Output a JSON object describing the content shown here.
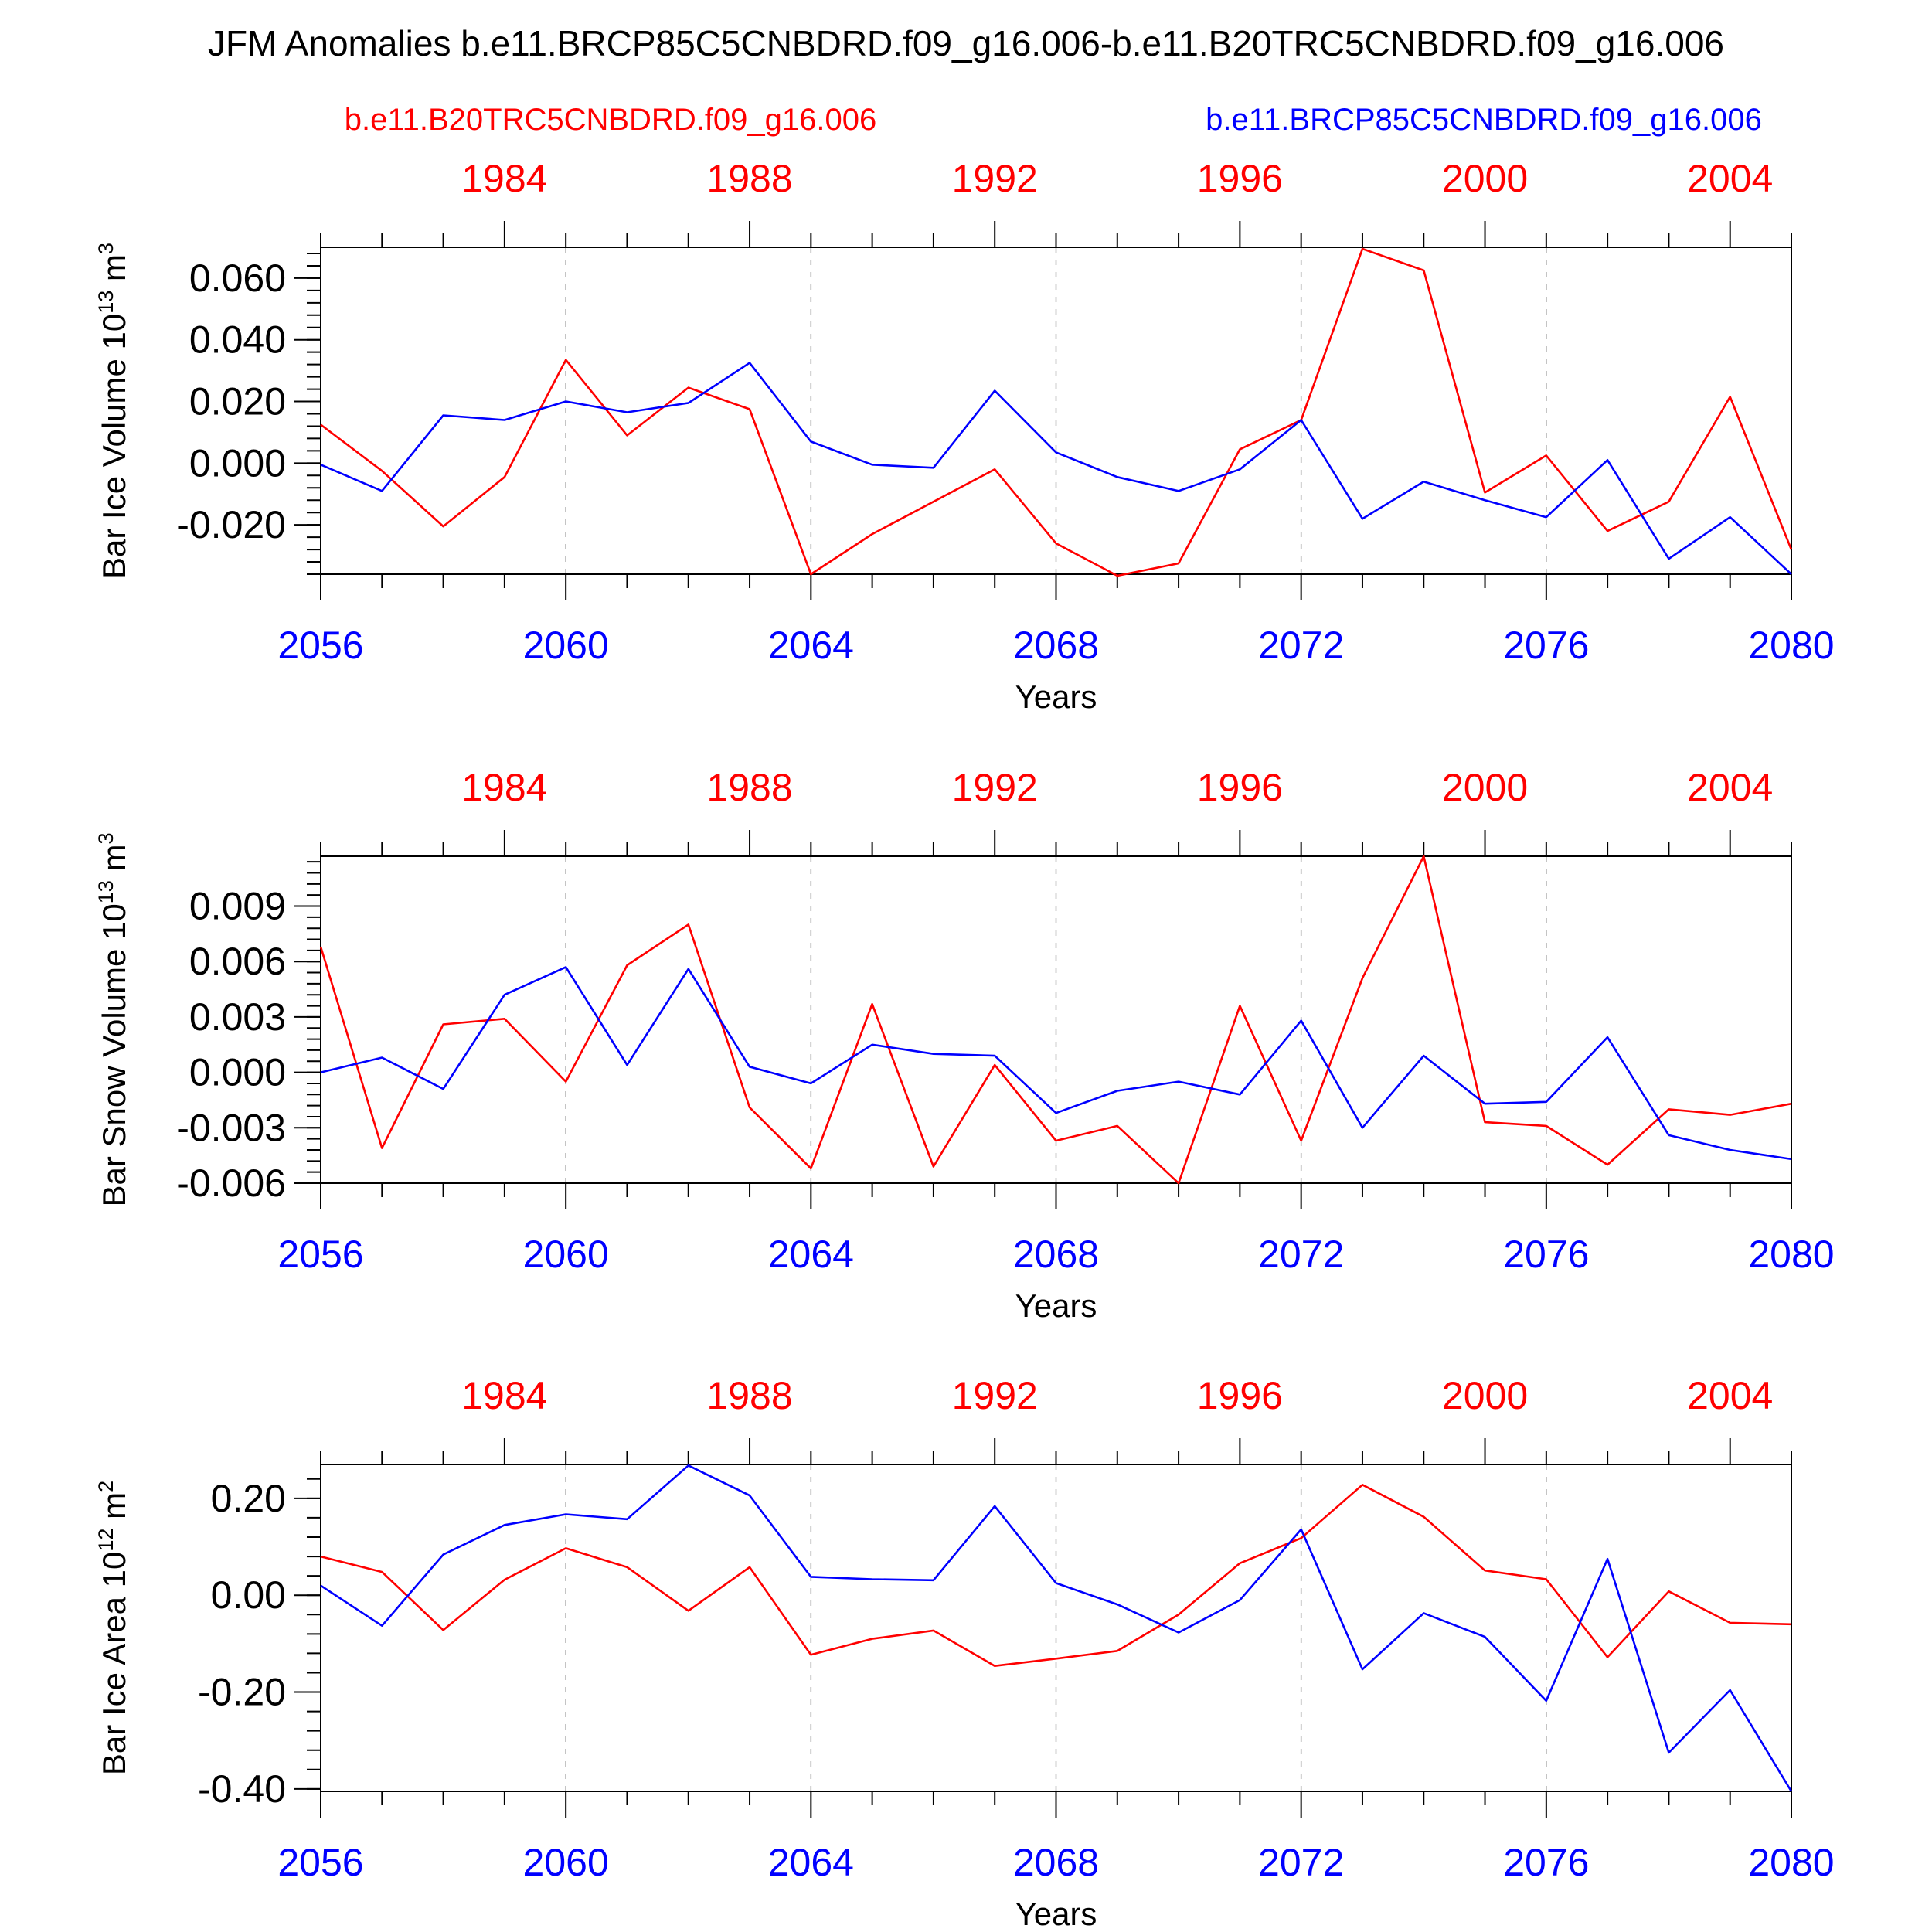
{
  "title": "JFM Anomalies b.e11.BRCP85C5CNBDRD.f09_g16.006-b.e11.B20TRC5CNBDRD.f09_g16.006",
  "legend": {
    "red_label": "b.e11.B20TRC5CNBDRD.f09_g16.006",
    "blue_label": "b.e11.BRCP85C5CNBDRD.f09_g16.006"
  },
  "colors": {
    "red": "#ff0000",
    "blue": "#0000ff",
    "axis": "#000000",
    "grid": "#999999"
  },
  "chart_data": [
    {
      "type": "line",
      "ylabel": "Bar Ice Volume 10",
      "ylabel_sup": "13",
      "ylabel_unit": " m",
      "ylabel_unit_sup": "3",
      "xlabel": "Years",
      "ylim": [
        -0.036,
        0.07
      ],
      "yticks": [
        -0.02,
        0.0,
        0.02,
        0.04,
        0.06
      ],
      "ytick_labels": [
        "-0.020",
        "0.000",
        "0.020",
        "0.040",
        "0.060"
      ],
      "yminor_step": 0.004,
      "x_bottom": [
        2056,
        2057,
        2058,
        2059,
        2060,
        2061,
        2062,
        2063,
        2064,
        2065,
        2066,
        2067,
        2068,
        2069,
        2070,
        2071,
        2072,
        2073,
        2074,
        2075,
        2076,
        2077,
        2078,
        2079,
        2080
      ],
      "x_top": [
        1981,
        1982,
        1983,
        1984,
        1985,
        1986,
        1987,
        1988,
        1989,
        1990,
        1991,
        1992,
        1993,
        1994,
        1995,
        1996,
        1997,
        1998,
        1999,
        2000,
        2001,
        2002,
        2003,
        2004,
        2005
      ],
      "bottom_tick_labels": [
        "2056",
        "2060",
        "2064",
        "2068",
        "2072",
        "2076",
        "2080"
      ],
      "top_tick_labels": [
        "1984",
        "1988",
        "1992",
        "1996",
        "2000",
        "2004"
      ],
      "series": [
        {
          "name": "b.e11.B20TRC5CNBDRD.f09_g16.006",
          "color": "red",
          "values": [
            0.0125,
            -0.0025,
            -0.0205,
            -0.0045,
            0.0335,
            0.009,
            0.0245,
            0.0175,
            -0.036,
            -0.023,
            -0.0125,
            -0.002,
            -0.026,
            -0.0365,
            -0.0325,
            0.0045,
            0.014,
            0.0695,
            0.0625,
            -0.0095,
            0.0025,
            -0.022,
            -0.0125,
            0.0215,
            -0.028
          ]
        },
        {
          "name": "b.e11.BRCP85C5CNBDRD.f09_g16.006",
          "color": "blue",
          "values": [
            -0.0005,
            -0.009,
            0.0155,
            0.014,
            0.02,
            0.0165,
            0.0195,
            0.0325,
            0.007,
            -0.0005,
            -0.0015,
            0.0235,
            0.0035,
            -0.0045,
            -0.009,
            -0.002,
            0.014,
            -0.018,
            -0.006,
            -0.012,
            -0.0175,
            0.001,
            -0.031,
            -0.0175,
            -0.036
          ]
        }
      ]
    },
    {
      "type": "line",
      "ylabel": "Bar Snow Volume 10",
      "ylabel_sup": "13",
      "ylabel_unit": " m",
      "ylabel_unit_sup": "3",
      "xlabel": "Years",
      "ylim": [
        -0.006,
        0.0117
      ],
      "yticks": [
        -0.006,
        -0.003,
        0.0,
        0.003,
        0.006,
        0.009
      ],
      "ytick_labels": [
        "-0.006",
        "-0.003",
        "0.000",
        "0.003",
        "0.006",
        "0.009"
      ],
      "yminor_step": 0.0006,
      "x_bottom": [
        2056,
        2057,
        2058,
        2059,
        2060,
        2061,
        2062,
        2063,
        2064,
        2065,
        2066,
        2067,
        2068,
        2069,
        2070,
        2071,
        2072,
        2073,
        2074,
        2075,
        2076,
        2077,
        2078,
        2079,
        2080
      ],
      "x_top": [
        1981,
        1982,
        1983,
        1984,
        1985,
        1986,
        1987,
        1988,
        1989,
        1990,
        1991,
        1992,
        1993,
        1994,
        1995,
        1996,
        1997,
        1998,
        1999,
        2000,
        2001,
        2002,
        2003,
        2004,
        2005
      ],
      "bottom_tick_labels": [
        "2056",
        "2060",
        "2064",
        "2068",
        "2072",
        "2076",
        "2080"
      ],
      "top_tick_labels": [
        "1984",
        "1988",
        "1992",
        "1996",
        "2000",
        "2004"
      ],
      "series": [
        {
          "name": "b.e11.B20TRC5CNBDRD.f09_g16.006",
          "color": "red",
          "values": [
            0.0068,
            -0.0041,
            0.0026,
            0.0029,
            -0.0005,
            0.0058,
            0.008,
            -0.0019,
            -0.0052,
            0.0037,
            -0.0051,
            0.0004,
            -0.0037,
            -0.0029,
            -0.006,
            0.0036,
            -0.0037,
            0.0051,
            0.0117,
            -0.0027,
            -0.0029,
            -0.005,
            -0.002,
            -0.0023,
            -0.0017
          ]
        },
        {
          "name": "b.e11.BRCP85C5CNBDRD.f09_g16.006",
          "color": "blue",
          "values": [
            0.0,
            0.0008,
            -0.0009,
            0.0042,
            0.0057,
            0.0004,
            0.0056,
            0.0003,
            -0.0006,
            0.0015,
            0.001,
            0.0009,
            -0.0022,
            -0.001,
            -0.0005,
            -0.0012,
            0.0028,
            -0.003,
            0.0009,
            -0.0017,
            -0.0016,
            0.0019,
            -0.0034,
            -0.0042,
            -0.0047
          ]
        }
      ]
    },
    {
      "type": "line",
      "ylabel": "Bar Ice Area 10",
      "ylabel_sup": "12",
      "ylabel_unit": " m",
      "ylabel_unit_sup": "2",
      "xlabel": "Years",
      "ylim": [
        -0.405,
        0.27
      ],
      "yticks": [
        -0.4,
        -0.2,
        0.0,
        0.2
      ],
      "ytick_labels": [
        "-0.40",
        "-0.20",
        "0.00",
        "0.20"
      ],
      "yminor_step": 0.04,
      "x_bottom": [
        2056,
        2057,
        2058,
        2059,
        2060,
        2061,
        2062,
        2063,
        2064,
        2065,
        2066,
        2067,
        2068,
        2069,
        2070,
        2071,
        2072,
        2073,
        2074,
        2075,
        2076,
        2077,
        2078,
        2079,
        2080
      ],
      "x_top": [
        1981,
        1982,
        1983,
        1984,
        1985,
        1986,
        1987,
        1988,
        1989,
        1990,
        1991,
        1992,
        1993,
        1994,
        1995,
        1996,
        1997,
        1998,
        1999,
        2000,
        2001,
        2002,
        2003,
        2004,
        2005
      ],
      "bottom_tick_labels": [
        "2056",
        "2060",
        "2064",
        "2068",
        "2072",
        "2076",
        "2080"
      ],
      "top_tick_labels": [
        "1984",
        "1988",
        "1992",
        "1996",
        "2000",
        "2004"
      ],
      "series": [
        {
          "name": "b.e11.B20TRC5CNBDRD.f09_g16.006",
          "color": "red",
          "values": [
            0.08,
            0.048,
            -0.072,
            0.032,
            0.097,
            0.058,
            -0.032,
            0.058,
            -0.123,
            -0.09,
            -0.073,
            -0.146,
            -0.131,
            -0.115,
            -0.04,
            0.066,
            0.118,
            0.228,
            0.162,
            0.051,
            0.033,
            -0.128,
            0.008,
            -0.057,
            -0.06
          ]
        },
        {
          "name": "b.e11.BRCP85C5CNBDRD.f09_g16.006",
          "color": "blue",
          "values": [
            0.02,
            -0.063,
            0.084,
            0.145,
            0.167,
            0.157,
            0.268,
            0.206,
            0.038,
            0.033,
            0.031,
            0.184,
            0.025,
            -0.019,
            -0.077,
            -0.01,
            0.136,
            -0.153,
            -0.037,
            -0.086,
            -0.218,
            0.075,
            -0.325,
            -0.196,
            -0.405
          ]
        }
      ]
    }
  ]
}
